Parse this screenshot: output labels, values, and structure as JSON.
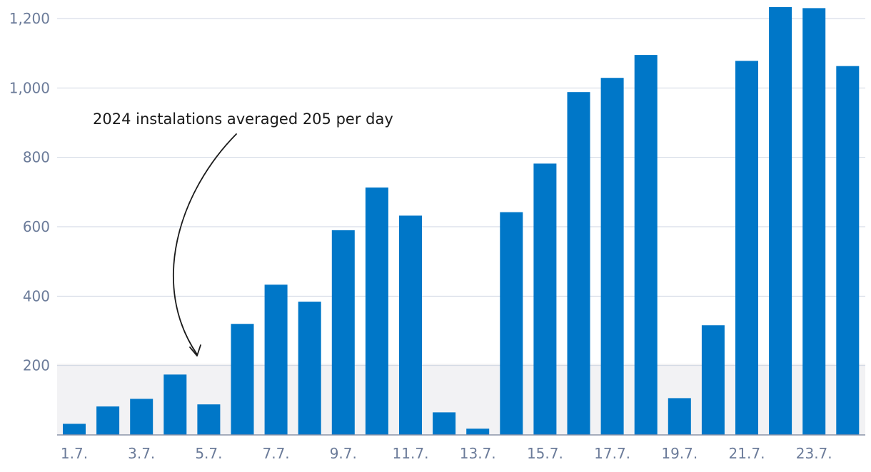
{
  "chart_data": {
    "type": "bar",
    "categories": [
      "1.7.",
      "2.7.",
      "3.7.",
      "4.7.",
      "5.7.",
      "6.7.",
      "7.7.",
      "8.7.",
      "9.7.",
      "10.7.",
      "11.7.",
      "12.7.",
      "13.7.",
      "14.7.",
      "15.7.",
      "16.7.",
      "17.7.",
      "18.7.",
      "19.7.",
      "20.7.",
      "21.7.",
      "22.7.",
      "23.7.",
      "24.7."
    ],
    "values": [
      32,
      82,
      104,
      174,
      88,
      320,
      433,
      384,
      590,
      713,
      632,
      65,
      18,
      642,
      782,
      988,
      1029,
      1095,
      106,
      316,
      1078,
      1233,
      1230,
      1063
    ],
    "x_tick_labels": [
      "1.7.",
      "3.7.",
      "5.7.",
      "7.7.",
      "9.7.",
      "11.7.",
      "13.7.",
      "15.7.",
      "17.7.",
      "19.7.",
      "21.7.",
      "23.7."
    ],
    "y_tick_labels": [
      "200",
      "400",
      "600",
      "800",
      "1,000",
      "1,200"
    ],
    "y_ticks": [
      200,
      400,
      600,
      800,
      1000,
      1200
    ],
    "ylim": [
      0,
      1240
    ],
    "average_band": 205,
    "annotation": "2024 instalations averaged 205 per day",
    "grid": true,
    "colors": {
      "bar": "#0077c8",
      "grid": "#cfd6e3",
      "band": "#f2f2f4",
      "axis": "#8a94a8",
      "tick_text": "#6b7b99"
    }
  }
}
